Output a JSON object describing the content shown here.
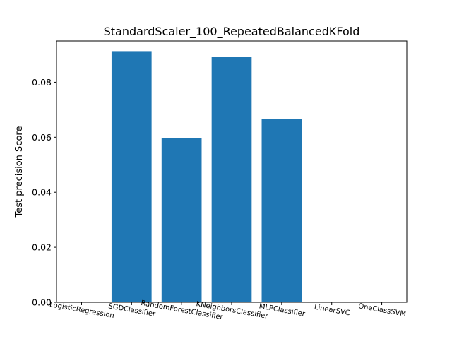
{
  "chart_data": {
    "type": "bar",
    "title": "StandardScaler_100_RepeatedBalancedKFold",
    "xlabel": "",
    "ylabel": "Test precision Score",
    "categories": [
      "LogisticRegression",
      "SGDClassifier",
      "RandomForestClassifier",
      "KNeighborsClassifier",
      "MLPClassifier",
      "LinearSVC",
      "OneClassSVM"
    ],
    "values": [
      0.0,
      0.0913,
      0.0598,
      0.0892,
      0.0667,
      0.0,
      0.0
    ],
    "ylim": [
      0,
      0.095
    ],
    "yticks": [
      0.0,
      0.02,
      0.04,
      0.06,
      0.08
    ],
    "ytick_labels": [
      "0.00",
      "0.02",
      "0.04",
      "0.06",
      "0.08"
    ],
    "bar_color": "#1f77b4",
    "grid": false,
    "legend": "none"
  }
}
